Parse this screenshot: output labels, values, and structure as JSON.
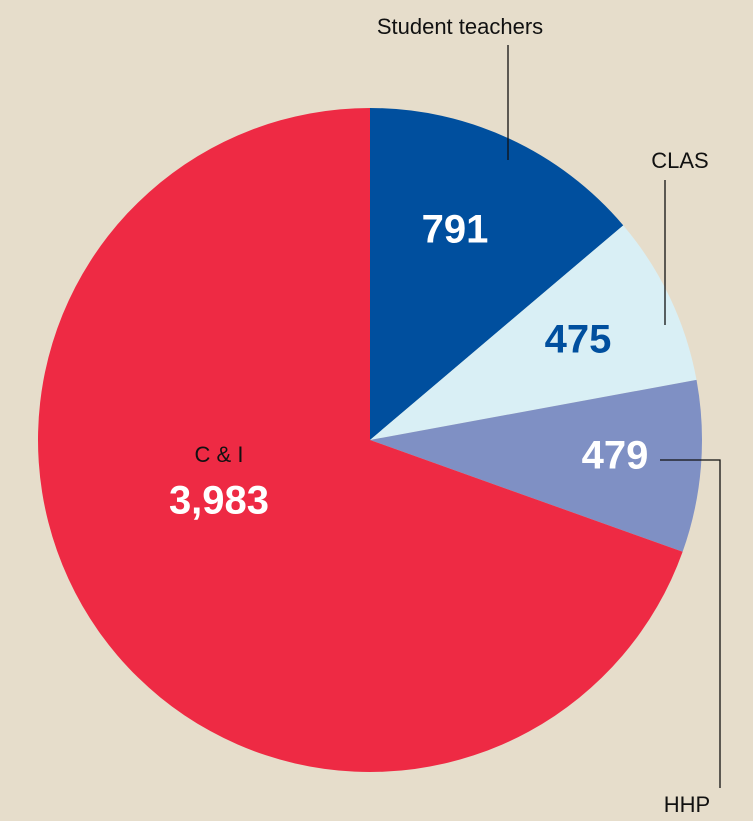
{
  "chart_data": {
    "type": "pie",
    "categories": [
      "Student teachers",
      "CLAS",
      "HHP",
      "C & I"
    ],
    "values": [
      791,
      475,
      479,
      3983
    ],
    "value_labels": [
      "791",
      "475",
      "479",
      "3,983"
    ],
    "colors": [
      "#004f9e",
      "#d9eff5",
      "#7f90c4",
      "#ee2a44"
    ],
    "label_colors": [
      "#ffffff",
      "#004f9e",
      "#ffffff",
      "#ffffff"
    ]
  }
}
